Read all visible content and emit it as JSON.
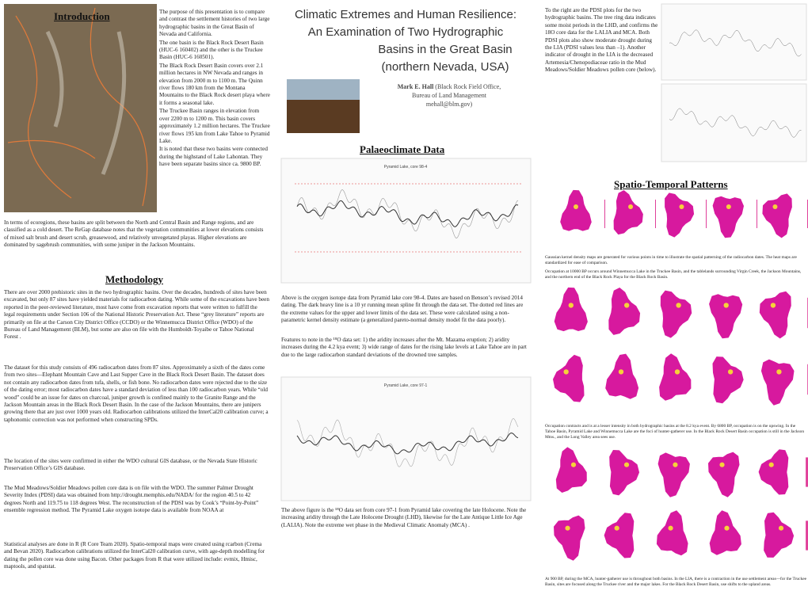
{
  "introduction": {
    "heading": "Introduction",
    "paragraphs": [
      "The purpose of this presentation is to compare and contrast the settlement histories of two large hydrographic basins in the Great Basin of Nevada and California.",
      "The one basin is the Black Rock Desert Basin (HUC-6 160402) and the other is the Truckee Basin (HUC-6 160501).",
      "The Black Rock Desert Basin covers over 2.1 million hectares in NW Nevada and ranges in elevation from 2000 m to 1100 m. The Quinn river flows 180 km from the Montana Mountains to the Black Rock desert playa where it forms a seasonal lake.",
      "The Truckee Basin ranges in elevation from over 2200 m to 1200 m. This basin covers approximately 1.2 million hectares. The Truckee river flows 195 km from Lake Tahoe to Pyramid Lake.",
      "It is noted that these two basins were connected during the highstand of Lake Lahontan. They have been separate basins since ca. 9800 BP."
    ],
    "ecoregions": "In terms of ecoregions, these basins are split between the North and Central Basin and Range regions, and are classified as a cold desert. The ReGap database notes that the vegetation communities at lower elevations consists of mixed salt brush and desert scrub, greasewood, and relatively unvegetated playas. Higher elevations are dominated by sagebrush communities, with some juniper in the Jackson Mountains."
  },
  "methodology": {
    "heading": "Methodology",
    "paragraphs": [
      "There are over 2000 prehistoric sites in the two hydrographic basins. Over the decades, hundreds of sites have been excavated, but only 87 sites have yielded materials for radiocarbon dating. While some of the excavations have been reported in the peer-reviewed literature, most have come from excavation reports that were written to fulfill the legal requirements under Section 106 of the National Historic Preservation Act. These “grey literature” reports are primarily on file at the Carson City District Office (CCDO) or the Winnemucca District Office (WDO) of the Bureau of Land Management (BLM), but some are also on file with the Humboldt-Toyaibe or Tahoe National Forest .",
      "The dataset for this study consists of 496 radiocarbon dates from 87 sites. Approximately a sixth of the dates come from two sites—Elephant Mountain Cave and Last Supper Cave in the Black Rock Desert Basin. The dataset does not contain any radiocarbon dates from tufa, shells, or fish bone. No radiocarbon dates were rejected due to the size of the dating error; most radiocarbon dates have a standard deviation of less than 100 radiocarbon years. While “old wood” could be an issue for dates on charcoal, juniper growth is confined mainly to the Granite Range and the Jackson Mountain areas in the Black Rock Desert Basin. In the case of the Jackson Mountains, there are junipers growing there that are just over 1000 years old. Radiocarbon calibrations utilized the InterCal20 calibration curve; a taphonomic correction was not performed when constructing SPDs.",
      "The location of the sites were confirmed in either the WDO cultural GIS database, or the Nevada State Historic Preservation Office’s GIS database.",
      "The Mud Meadows/Soldier Meadows pollen core data is on file with the WDO. The summer Palmer Drought Severity Index (PDSI) data was obtained from http://drought.memphis.edu/NADA/ for the region 40.5 to 42 degrees North and 119.75 to 118 degrees West. The reconstruction of the PDSI was by Cook’s “Point-by-Point” ensemble regression method. The Pyramid Lake oxygen isotope data is available from NOAA at",
      "Statistical analyses are done in R (R Core Team 2020). Spatio-temporal maps were created using rcarbon (Crema and Bevan 2020). Radiocarbon calibrations utilized the InterCal20 calibration curve, with age-depth modelling for dating the pollen core was done using Bacon. Other packages from R that were utilized include: evmix, Hmisc, maptools, and spatstat."
    ]
  },
  "title": {
    "lines": [
      "Climatic Extremes and Human Resilience:",
      "An Examination of Two Hydrographic",
      "Basins in the Great Basin",
      "(northern Nevada, USA)"
    ],
    "author": "Mark E. Hall",
    "affiliation": [
      "(Black Rock Field Office,",
      "Bureau of Land Management",
      "mehall@blm.gov)"
    ]
  },
  "palaeoclimate": {
    "heading": "Palaeoclimate Data",
    "chart1_title": "Pyramid Lake, core 98-4",
    "paragraphs": [
      "Above is the oxygen isotope data from Pyramid lake core 98-4. Dates are based on Benson’s revised 2014 dating. The dark heavy line is a 10 yr running mean spline fit through the data set. The dotted red lines are the extreme values for the upper and lower limits of the data set. These were calculated using a non-parametric kernel density estimate (a generalized pareto-normal density model fit the data poorly).",
      "Features to note in the ¹⁸O data set: 1) the aridity increases after the Mt. Mazama eruption; 2) aridity increases during the 4.2 kya event; 3) wide range of dates for the rising lake levels at Lake Tahoe are in part due to the large radiocarbon standard deviations of the drowned tree samples."
    ],
    "chart2_title": "Pyramid Lake, core 97-1",
    "closing": "The above figure is the ¹⁸O data set from core 97-1 from Pyramid lake covering the late Holocene. Note the increasing aridity through the Late Holocene Drought (LHD), likewise for the Late Antique Little Ice Age (LALIA). Note the extreme wet phase in the Medieval Climatic Anomaly (MCA) ."
  },
  "pdsi_text": "To the right are the PDSI plots for the two hydrographic basins. The tree ring data indicates some moist periods in the LHD, and confirms the 18O core data for the LALIA and MCA. Both PDSI plots also show moderate drought during the LIA (PDSI values less than –1). Another indicator of drought in the LIA is the decreased Artemesia/Chenopodiaceae ratio in the Mud Meadows/Soldier Meadows pollen core (below).",
  "spatio": {
    "heading": "Spatio-Temporal Patterns",
    "captions": [
      "Gaussian kernel density maps are generated for various points in time to illustrate the spatial patterning of the radiocarbon dates. The heat maps are standardized for ease of comparison.",
      "Occupation at 10000 BP occurs around Winnemucca Lake in the Truckee Basin, and the tablelands surrounding Virgin Creek, the Jackson Mountains, and the northern end of the Black Rock Playa for the Black Rock Basin.",
      "Occupation contracts and is at a lesser intensity in both hydrographic basins at the 8.2 kya event. By 6800 BP, occupation is on the upswing. In the Tahoe Basin, Pyramid Lake and Winnemucca Lake are the foci of hunter-gatherer use. In the Black Rock Desert Basin occupation is still in the Jackson Mtns., and the Long Valley area sees use.",
      "At 900 BP, during the MCA, hunter-gatherer use is throughout both basins. In the LIA, there is a contraction in the use settlement areas—for the Truckee Basin, sites are focused along the Truckee river and the major lakes. For the Black Rock Desert Basin, use shifts to the upland areas."
    ]
  }
}
